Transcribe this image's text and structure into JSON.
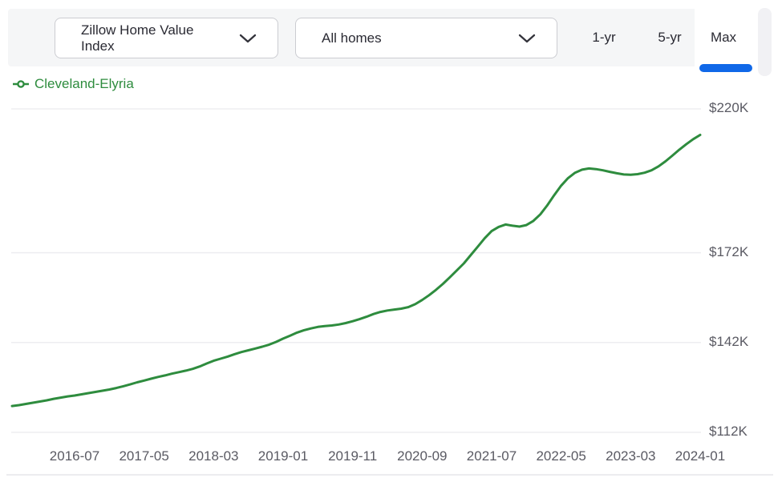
{
  "header": {
    "metric_dropdown": {
      "value": "Zillow Home Value Index"
    },
    "segment_dropdown": {
      "value": "All homes"
    },
    "range_tabs": [
      {
        "label": "1-yr",
        "active": false
      },
      {
        "label": "5-yr",
        "active": false
      },
      {
        "label": "Max",
        "active": true
      }
    ]
  },
  "legend": {
    "label": "Cleveland-Elyria"
  },
  "colors": {
    "accent_blue": "#1068e8",
    "series_green": "#2e8c3e",
    "header_bg": "#f5f6f7",
    "grid_line": "#ededf0",
    "axis_text": "#5a5a63",
    "control_text": "#2a2a33",
    "control_border": "#cbccd1"
  },
  "chart_data": {
    "type": "line",
    "title": "",
    "xlabel": "",
    "ylabel": "",
    "y_unit": "USD thousands",
    "ylim": [
      112,
      220
    ],
    "grid": "horizontal",
    "legend_position": "top-left",
    "y_axis_side": "right",
    "y_ticks": [
      {
        "label": "$220K",
        "value": 220
      },
      {
        "label": "$172K",
        "value": 172
      },
      {
        "label": "$142K",
        "value": 142
      },
      {
        "label": "$112K",
        "value": 112
      }
    ],
    "x_ticks": [
      {
        "label": "2016-07",
        "month_index": 9
      },
      {
        "label": "2017-05",
        "month_index": 19
      },
      {
        "label": "2018-03",
        "month_index": 29
      },
      {
        "label": "2019-01",
        "month_index": 39
      },
      {
        "label": "2019-11",
        "month_index": 49
      },
      {
        "label": "2020-09",
        "month_index": 59
      },
      {
        "label": "2021-07",
        "month_index": 69
      },
      {
        "label": "2022-05",
        "month_index": 79
      },
      {
        "label": "2023-03",
        "month_index": 89
      },
      {
        "label": "2024-01",
        "month_index": 99
      }
    ],
    "x_monthly_start": "2015-10",
    "x_monthly_end": "2024-01",
    "series": [
      {
        "name": "Cleveland-Elyria",
        "color": "#2e8c3e",
        "values": [
          120.8,
          121.1,
          121.5,
          121.9,
          122.3,
          122.7,
          123.2,
          123.6,
          124.0,
          124.3,
          124.7,
          125.1,
          125.5,
          125.9,
          126.3,
          126.8,
          127.4,
          128.0,
          128.7,
          129.3,
          129.9,
          130.5,
          131.0,
          131.6,
          132.1,
          132.6,
          133.2,
          134.0,
          135.0,
          135.9,
          136.6,
          137.3,
          138.1,
          138.8,
          139.4,
          140.0,
          140.6,
          141.3,
          142.2,
          143.3,
          144.3,
          145.3,
          146.1,
          146.7,
          147.2,
          147.5,
          147.7,
          148.0,
          148.5,
          149.1,
          149.8,
          150.6,
          151.5,
          152.2,
          152.7,
          153.0,
          153.3,
          153.8,
          154.8,
          156.2,
          157.8,
          159.6,
          161.6,
          163.8,
          166.1,
          168.4,
          171.2,
          174.0,
          176.8,
          179.2,
          180.6,
          181.4,
          181.0,
          180.7,
          181.2,
          182.6,
          184.8,
          187.8,
          191.2,
          194.4,
          196.9,
          198.7,
          199.7,
          200.1,
          199.9,
          199.5,
          199.0,
          198.5,
          198.1,
          198.0,
          198.2,
          198.7,
          199.5,
          200.8,
          202.5,
          204.4,
          206.4,
          208.2,
          209.9,
          211.3
        ]
      }
    ]
  }
}
